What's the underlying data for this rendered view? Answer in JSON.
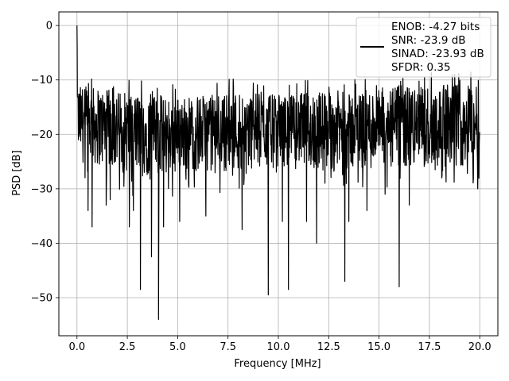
{
  "chart_data": {
    "type": "line",
    "xlabel": "Frequency [MHz]",
    "ylabel": "PSD [dB]",
    "xlim": [
      -0.9,
      20.9
    ],
    "ylim": [
      -57,
      2.5
    ],
    "xticks": [
      0.0,
      2.5,
      5.0,
      7.5,
      10.0,
      12.5,
      15.0,
      17.5,
      20.0
    ],
    "xtick_labels": [
      "0.0",
      "2.5",
      "5.0",
      "7.5",
      "10.0",
      "12.5",
      "15.0",
      "17.5",
      "20.0"
    ],
    "yticks": [
      0,
      -10,
      -20,
      -30,
      -40,
      -50
    ],
    "ytick_labels": [
      "0",
      "−10",
      "−20",
      "−30",
      "−40",
      "−50"
    ],
    "grid": true,
    "legend_position": "top-right",
    "legend_lines": [
      "ENOB: -4.27 bits",
      "SNR: -23.9 dB",
      "SINAD: -23.93 dB",
      "SFDR: 0.35"
    ],
    "series": [
      {
        "color": "#000000",
        "x_start": 0.0,
        "x_end": 20.0,
        "peak": {
          "x": 0.0,
          "y": 0.0
        },
        "upper_envelope": [
          -11,
          -12,
          -13,
          -13,
          -12,
          -13,
          -12,
          -12,
          -11,
          -11,
          -10
        ],
        "lower_envelope": [
          -25,
          -27,
          -28,
          -27,
          -27,
          -26,
          -27,
          -27,
          -27,
          -27,
          -26
        ],
        "notches": [
          {
            "x": 0.55,
            "y": -34
          },
          {
            "x": 0.75,
            "y": -37
          },
          {
            "x": 1.45,
            "y": -33
          },
          {
            "x": 1.65,
            "y": -32
          },
          {
            "x": 2.6,
            "y": -37
          },
          {
            "x": 2.8,
            "y": -34
          },
          {
            "x": 3.15,
            "y": -48.5
          },
          {
            "x": 3.7,
            "y": -42.5
          },
          {
            "x": 4.05,
            "y": -54
          },
          {
            "x": 4.3,
            "y": -37
          },
          {
            "x": 5.1,
            "y": -36
          },
          {
            "x": 6.4,
            "y": -35
          },
          {
            "x": 8.2,
            "y": -37.5
          },
          {
            "x": 9.5,
            "y": -49.5
          },
          {
            "x": 10.2,
            "y": -36
          },
          {
            "x": 10.5,
            "y": -48.5
          },
          {
            "x": 11.4,
            "y": -36
          },
          {
            "x": 11.9,
            "y": -40
          },
          {
            "x": 13.3,
            "y": -47
          },
          {
            "x": 13.5,
            "y": -36
          },
          {
            "x": 14.4,
            "y": -34
          },
          {
            "x": 15.3,
            "y": -31
          },
          {
            "x": 16.0,
            "y": -48
          },
          {
            "x": 16.5,
            "y": -33
          },
          {
            "x": 19.9,
            "y": -30
          }
        ]
      }
    ]
  }
}
